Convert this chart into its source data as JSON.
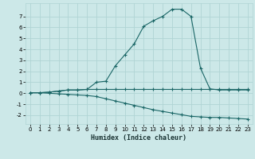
{
  "xlabel": "Humidex (Indice chaleur)",
  "background_color": "#cce8e8",
  "grid_color": "#b0d4d4",
  "line_color": "#1a6666",
  "xlim": [
    -0.5,
    23.5
  ],
  "ylim": [
    -2.8,
    8.2
  ],
  "xticks": [
    0,
    1,
    2,
    3,
    4,
    5,
    6,
    7,
    8,
    9,
    10,
    11,
    12,
    13,
    14,
    15,
    16,
    17,
    18,
    19,
    20,
    21,
    22,
    23
  ],
  "yticks": [
    -2,
    -1,
    0,
    1,
    2,
    3,
    4,
    5,
    6,
    7
  ],
  "curve1_x": [
    0,
    1,
    2,
    3,
    4,
    5,
    6,
    7,
    8,
    9,
    10,
    11,
    12,
    13,
    14,
    15,
    16,
    17,
    18,
    19,
    20,
    21,
    22,
    23
  ],
  "curve1_y": [
    0.05,
    0.05,
    0.1,
    0.2,
    0.3,
    0.3,
    0.35,
    1.0,
    1.1,
    2.5,
    3.5,
    4.5,
    6.1,
    6.6,
    7.0,
    7.65,
    7.65,
    7.0,
    2.3,
    0.4,
    0.3,
    0.3,
    0.3,
    0.3
  ],
  "curve2_x": [
    0,
    1,
    2,
    3,
    4,
    5,
    6,
    7,
    8,
    9,
    10,
    11,
    12,
    13,
    14,
    15,
    16,
    17,
    18,
    19,
    20,
    21,
    22,
    23
  ],
  "curve2_y": [
    0.05,
    0.05,
    0.1,
    0.2,
    0.3,
    0.3,
    0.35,
    0.35,
    0.35,
    0.35,
    0.35,
    0.35,
    0.35,
    0.35,
    0.35,
    0.35,
    0.35,
    0.35,
    0.35,
    0.35,
    0.35,
    0.35,
    0.35,
    0.35
  ],
  "curve3_x": [
    0,
    1,
    2,
    3,
    4,
    5,
    6,
    7,
    8,
    9,
    10,
    11,
    12,
    13,
    14,
    15,
    16,
    17,
    18,
    19,
    20,
    21,
    22,
    23
  ],
  "curve3_y": [
    0.05,
    0.05,
    0.0,
    -0.05,
    -0.1,
    -0.15,
    -0.2,
    -0.3,
    -0.5,
    -0.7,
    -0.9,
    -1.1,
    -1.3,
    -1.5,
    -1.65,
    -1.8,
    -1.95,
    -2.1,
    -2.15,
    -2.2,
    -2.2,
    -2.25,
    -2.3,
    -2.35
  ],
  "xlabel_fontsize": 6,
  "tick_fontsize": 5
}
